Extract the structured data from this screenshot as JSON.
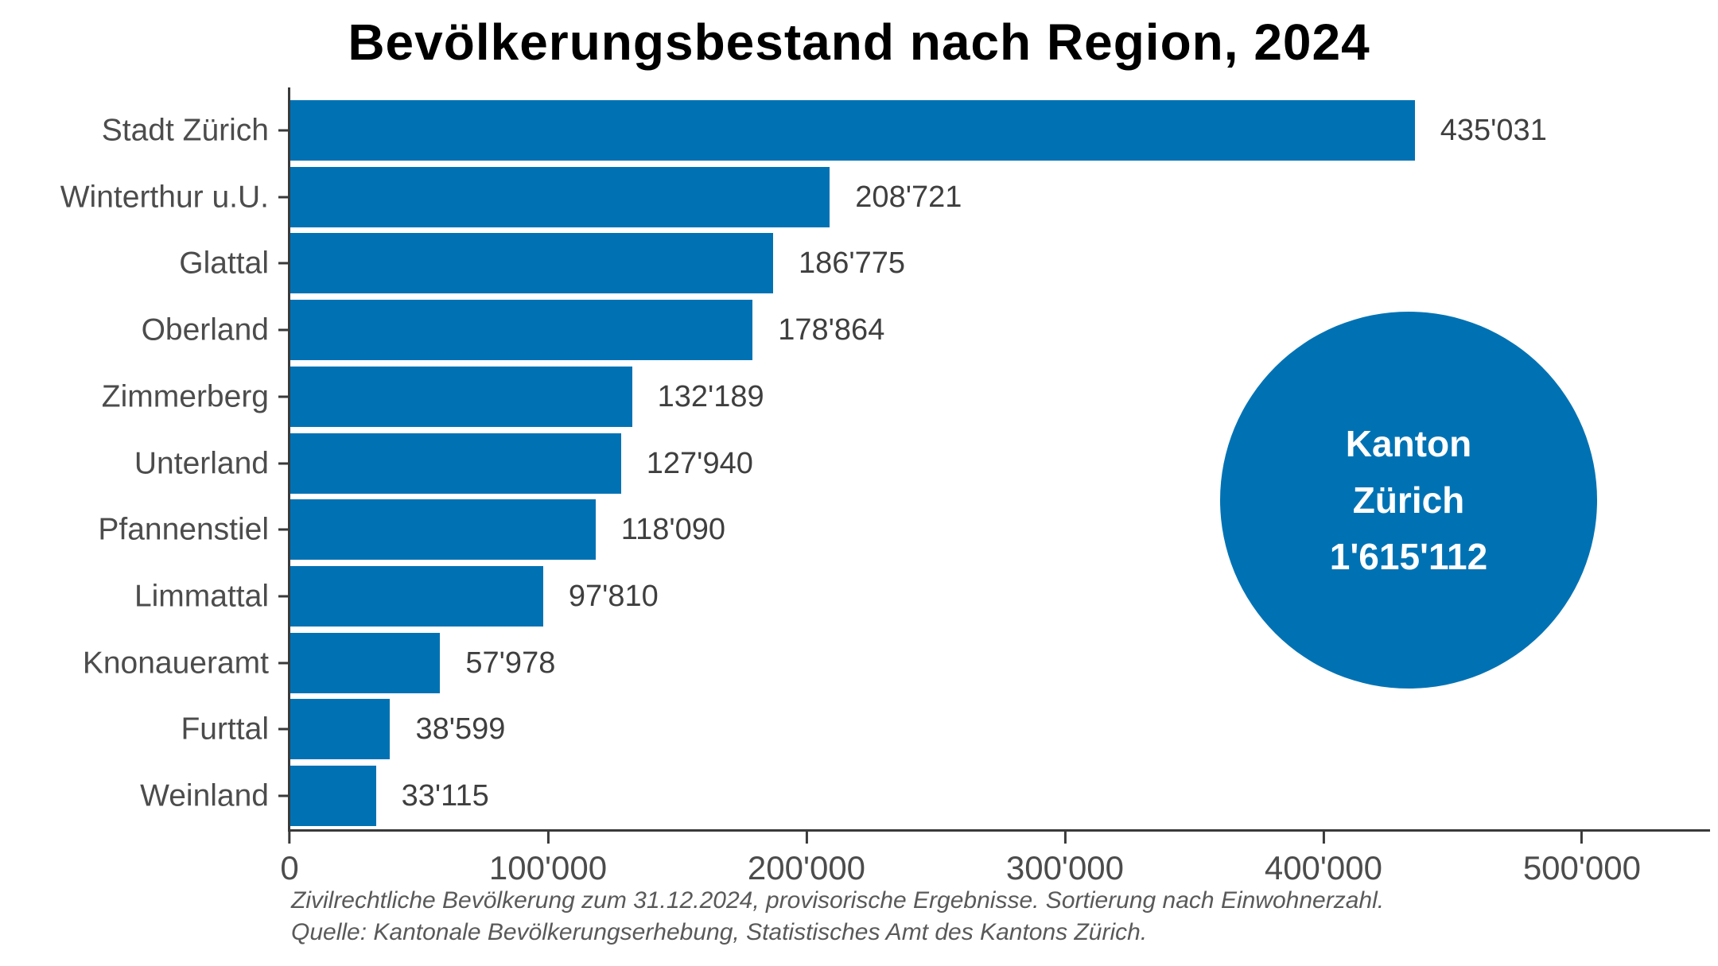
{
  "title": "Bevölkerungsbestand nach Region, 2024",
  "chart_data": {
    "type": "bar",
    "orientation": "horizontal",
    "title": "Bevölkerungsbestand nach Region, 2024",
    "categories": [
      "Stadt Zürich",
      "Winterthur u.U.",
      "Glattal",
      "Oberland",
      "Zimmerberg",
      "Unterland",
      "Pfannenstiel",
      "Limmattal",
      "Knonaueramt",
      "Furttal",
      "Weinland"
    ],
    "values": [
      435031,
      208721,
      186775,
      178864,
      132189,
      127940,
      118090,
      97810,
      57978,
      38599,
      33115
    ],
    "value_labels": [
      "435'031",
      "208'721",
      "186'775",
      "178'864",
      "132'189",
      "127'940",
      "118'090",
      "97'810",
      "57'978",
      "38'599",
      "33'115"
    ],
    "xlabel": "",
    "ylabel": "",
    "x_axis": {
      "max": 550800,
      "ticks": [
        {
          "label": "0",
          "value": 0
        },
        {
          "label": "100'000",
          "value": 100000
        },
        {
          "label": "200'000",
          "value": 200000
        },
        {
          "label": "300'000",
          "value": 300000
        },
        {
          "label": "400'000",
          "value": 400000
        },
        {
          "label": "500'000",
          "value": 500000
        }
      ]
    },
    "grid": false,
    "legend": false,
    "annotation": {
      "shape": "circle",
      "lines": [
        "Kanton",
        "Zürich",
        "1'615'112"
      ],
      "total_value": 1615112
    }
  },
  "footnotes": [
    "Zivilrechtliche Bevölkerung zum 31.12.2024, provisorische Ergebnisse. Sortierung nach Einwohnerzahl.",
    "Quelle: Kantonale Bevölkerungserhebung, Statistisches Amt des Kantons Zürich."
  ],
  "colors": {
    "bar": "#0072b4",
    "circle": "#0072b4",
    "title": "#000000",
    "axis_text": "#4c4c4c",
    "value_text": "#3f3f3f",
    "axis_line": "#3a3a3a",
    "footnote_text": "#595959",
    "circle_text": "#ffffff",
    "background": "#ffffff"
  }
}
